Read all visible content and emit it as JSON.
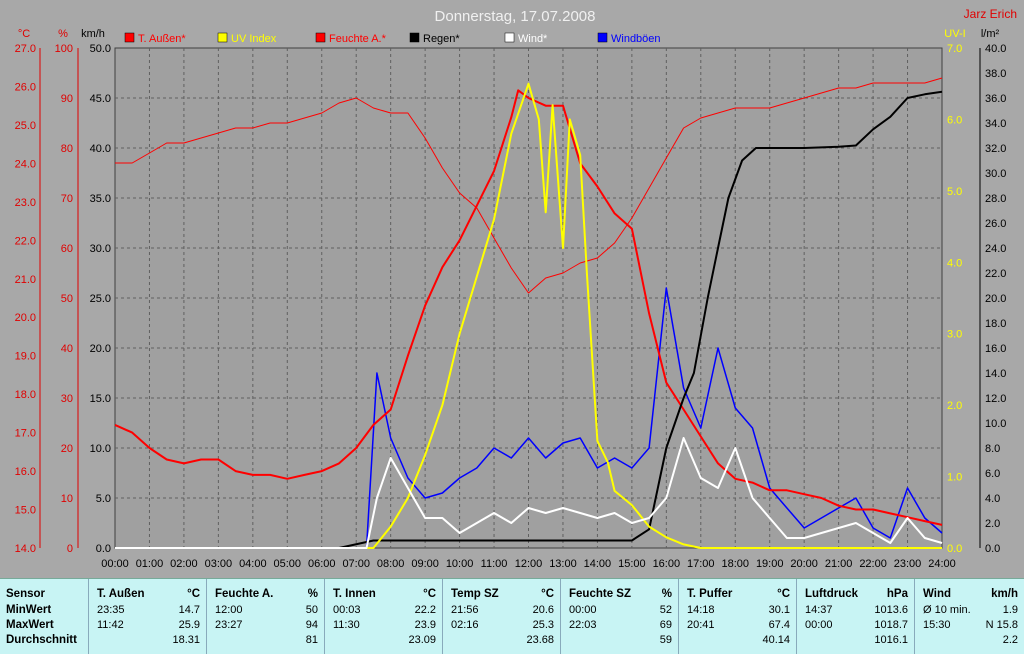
{
  "chart_data": {
    "type": "line",
    "title": "Donnerstag, 17.07.2008",
    "author": "Jarz Erich",
    "x_ticks": [
      "00:00",
      "01:00",
      "02:00",
      "03:00",
      "04:00",
      "05:00",
      "06:00",
      "07:00",
      "08:00",
      "09:00",
      "10:00",
      "11:00",
      "12:00",
      "13:00",
      "14:00",
      "15:00",
      "16:00",
      "17:00",
      "18:00",
      "19:00",
      "20:00",
      "21:00",
      "22:00",
      "23:00",
      "24:00"
    ],
    "axes": {
      "celsius": {
        "unit": "°C",
        "min": 14.0,
        "max": 27.0,
        "ticks": [
          "27.0",
          "26.0",
          "25.0",
          "24.0",
          "23.0",
          "22.0",
          "21.0",
          "20.0",
          "19.0",
          "18.0",
          "17.0",
          "16.0",
          "15.0",
          "14.0"
        ]
      },
      "percent": {
        "unit": "%",
        "min": 0,
        "max": 100,
        "ticks": [
          "100",
          "90",
          "80",
          "70",
          "60",
          "50",
          "40",
          "30",
          "20",
          "10",
          "0"
        ]
      },
      "kmh": {
        "unit": "km/h",
        "min": 0,
        "max": 50,
        "ticks": [
          "50.0",
          "45.0",
          "40.0",
          "35.0",
          "30.0",
          "25.0",
          "20.0",
          "15.0",
          "10.0",
          "5.0",
          "0.0"
        ]
      },
      "uvi": {
        "unit": "UV-I",
        "min": 0,
        "max": 7,
        "ticks": [
          "7.0",
          "6.0",
          "5.0",
          "4.0",
          "3.0",
          "2.0",
          "1.0",
          "0.0"
        ]
      },
      "rain": {
        "unit": "l/m²",
        "min": 0,
        "max": 40,
        "ticks": [
          "40.0",
          "38.0",
          "36.0",
          "34.0",
          "32.0",
          "30.0",
          "28.0",
          "26.0",
          "24.0",
          "22.0",
          "20.0",
          "18.0",
          "16.0",
          "14.0",
          "12.0",
          "10.0",
          "8.0",
          "6.0",
          "4.0",
          "2.0",
          "0.0"
        ]
      }
    },
    "legend": [
      {
        "name": "T. Außen*",
        "color": "#ff0000"
      },
      {
        "name": "UV Index",
        "color": "#ffff00"
      },
      {
        "name": "Feuchte A.*",
        "color": "#ff0000"
      },
      {
        "name": "Regen*",
        "color": "#000000"
      },
      {
        "name": "Wind*",
        "color": "#ffffff"
      },
      {
        "name": "Windböen",
        "color": "#0000ff"
      }
    ],
    "series": [
      {
        "name": "T. Außen*",
        "axis": "celsius",
        "color": "#ff0000",
        "width": 2,
        "x": [
          0,
          0.5,
          1,
          1.5,
          2,
          2.5,
          3,
          3.5,
          4,
          4.5,
          5,
          5.5,
          6,
          6.5,
          7,
          7.5,
          8,
          8.5,
          9,
          9.5,
          10,
          10.5,
          11,
          11.5,
          11.7,
          12,
          12.5,
          13,
          13.5,
          14,
          14.5,
          15,
          15.5,
          16,
          16.5,
          17,
          17.5,
          18,
          18.5,
          19,
          19.5,
          20,
          20.5,
          21,
          21.5,
          22,
          22.5,
          23,
          23.5,
          24
        ],
        "y": [
          17.2,
          17.0,
          16.6,
          16.3,
          16.2,
          16.3,
          16.3,
          16.0,
          15.9,
          15.9,
          15.8,
          15.9,
          16.0,
          16.2,
          16.6,
          17.2,
          17.6,
          19.0,
          20.3,
          21.3,
          22.0,
          22.9,
          23.8,
          25.2,
          25.9,
          25.7,
          25.5,
          25.5,
          24.0,
          23.4,
          22.7,
          22.3,
          20.1,
          18.3,
          17.6,
          16.9,
          16.2,
          15.8,
          15.7,
          15.5,
          15.5,
          15.4,
          15.3,
          15.1,
          15.0,
          15.0,
          14.9,
          14.8,
          14.7,
          14.6
        ]
      },
      {
        "name": "Feuchte A.*",
        "axis": "percent",
        "color": "#ff0000",
        "width": 1,
        "x": [
          0,
          0.5,
          1,
          1.5,
          2,
          2.5,
          3,
          3.5,
          4,
          4.5,
          5,
          5.5,
          6,
          6.5,
          7,
          7.5,
          8,
          8.5,
          9,
          9.5,
          10,
          10.5,
          11,
          11.5,
          12,
          12.5,
          13,
          13.5,
          14,
          14.5,
          15,
          15.5,
          16,
          16.5,
          17,
          17.5,
          18,
          18.5,
          19,
          19.5,
          20,
          20.5,
          21,
          21.5,
          22,
          22.5,
          23,
          23.5,
          24
        ],
        "y": [
          77,
          77,
          79,
          81,
          81,
          82,
          83,
          84,
          84,
          85,
          85,
          86,
          87,
          89,
          90,
          88,
          87,
          87,
          82,
          76,
          71,
          68,
          62,
          56,
          51,
          54,
          55,
          57,
          58,
          61,
          66,
          72,
          78,
          84,
          86,
          87,
          88,
          88,
          88,
          89,
          90,
          91,
          92,
          92,
          93,
          93,
          93,
          93,
          94
        ]
      },
      {
        "name": "Regen*",
        "axis": "rain",
        "color": "#000000",
        "width": 2,
        "x": [
          0,
          6.5,
          7.5,
          12,
          15,
          15.5,
          16,
          16.5,
          16.8,
          17.2,
          17.5,
          17.8,
          18.2,
          18.6,
          19,
          20,
          21,
          21.5,
          22,
          22.5,
          23,
          23.5,
          24
        ],
        "y": [
          0,
          0,
          0.6,
          0.6,
          0.6,
          1.5,
          8.0,
          12.0,
          14.0,
          20.0,
          24.0,
          28.0,
          31.0,
          32.0,
          32.0,
          32.0,
          32.1,
          32.2,
          33.5,
          34.5,
          36.0,
          36.3,
          36.5
        ]
      },
      {
        "name": "UV Index",
        "axis": "uvi",
        "color": "#ffff00",
        "width": 2,
        "x": [
          0,
          7.5,
          8,
          8.5,
          9,
          9.5,
          10,
          10.5,
          11,
          11.5,
          12,
          12.3,
          12.5,
          12.7,
          13,
          13.2,
          13.5,
          13.7,
          14,
          14.3,
          14.5,
          15,
          15.5,
          16,
          16.5,
          17,
          24
        ],
        "y": [
          0,
          0,
          0.3,
          0.7,
          1.3,
          2.0,
          3.0,
          3.8,
          4.6,
          5.8,
          6.5,
          6.0,
          4.7,
          6.2,
          4.2,
          6.0,
          5.5,
          3.8,
          1.5,
          1.2,
          0.8,
          0.6,
          0.3,
          0.15,
          0.05,
          0,
          0
        ]
      },
      {
        "name": "Wind*",
        "axis": "kmh",
        "color": "#ffffff",
        "width": 2,
        "x": [
          0,
          7.3,
          7.6,
          8,
          8.5,
          9,
          9.5,
          10,
          10.5,
          11,
          11.5,
          12,
          12.5,
          13,
          13.5,
          14,
          14.5,
          15,
          15.5,
          16,
          16.5,
          17,
          17.5,
          18,
          18.5,
          19,
          19.5,
          20,
          20.5,
          21,
          21.5,
          22,
          22.5,
          23,
          23.5,
          24
        ],
        "y": [
          0,
          0,
          5,
          9,
          6,
          3,
          3,
          1.5,
          2.5,
          3.5,
          2.5,
          4,
          3.5,
          4,
          3.5,
          3,
          3.5,
          2.5,
          3,
          5,
          11,
          7,
          6,
          10,
          5,
          3,
          1,
          1,
          1.5,
          2,
          2.5,
          1.5,
          0.5,
          3,
          1,
          0.5
        ]
      },
      {
        "name": "Windböen",
        "axis": "kmh",
        "color": "#0000ff",
        "width": 1.5,
        "x": [
          0,
          7.3,
          7.6,
          8,
          8.5,
          9,
          9.5,
          10,
          10.5,
          11,
          11.5,
          12,
          12.5,
          13,
          13.5,
          14,
          14.5,
          15,
          15.5,
          16,
          16.5,
          17,
          17.5,
          18,
          18.5,
          19,
          19.5,
          20,
          20.5,
          21,
          21.5,
          22,
          22.5,
          23,
          23.5,
          24
        ],
        "y": [
          0,
          0,
          17.5,
          11,
          7,
          5,
          5.5,
          7,
          8,
          10,
          9,
          11,
          9,
          10.5,
          11,
          8,
          9,
          8,
          10,
          26,
          16,
          12,
          20,
          14,
          12,
          6,
          4,
          2,
          3,
          4,
          5,
          2,
          1,
          6,
          3,
          1.5
        ]
      }
    ]
  },
  "table": [
    {
      "header": [
        "Sensor",
        ""
      ],
      "rows": [
        [
          "MinWert",
          ""
        ],
        [
          "MaxWert",
          ""
        ],
        [
          "Durchschnitt",
          ""
        ]
      ]
    },
    {
      "header": [
        "T. Außen",
        "°C"
      ],
      "rows": [
        [
          "23:35",
          "14.7"
        ],
        [
          "11:42",
          "25.9"
        ],
        [
          "",
          "18.31"
        ]
      ]
    },
    {
      "header": [
        "Feuchte A.",
        "%"
      ],
      "rows": [
        [
          "12:00",
          "50"
        ],
        [
          "23:27",
          "94"
        ],
        [
          "",
          "81"
        ]
      ]
    },
    {
      "header": [
        "T. Innen",
        "°C"
      ],
      "rows": [
        [
          "00:03",
          "22.2"
        ],
        [
          "11:30",
          "23.9"
        ],
        [
          "",
          "23.09"
        ]
      ]
    },
    {
      "header": [
        "Temp SZ",
        "°C"
      ],
      "rows": [
        [
          "21:56",
          "20.6"
        ],
        [
          "02:16",
          "25.3"
        ],
        [
          "",
          "23.68"
        ]
      ]
    },
    {
      "header": [
        "Feuchte SZ",
        "%"
      ],
      "rows": [
        [
          "00:00",
          "52"
        ],
        [
          "22:03",
          "69"
        ],
        [
          "",
          "59"
        ]
      ]
    },
    {
      "header": [
        "T. Puffer",
        "°C"
      ],
      "rows": [
        [
          "14:18",
          "30.1"
        ],
        [
          "20:41",
          "67.4"
        ],
        [
          "",
          "40.14"
        ]
      ]
    },
    {
      "header": [
        "Luftdruck",
        "hPa"
      ],
      "rows": [
        [
          "14:37",
          "1013.6"
        ],
        [
          "00:00",
          "1018.7"
        ],
        [
          "",
          "1016.1"
        ]
      ]
    },
    {
      "header": [
        "Wind",
        "km/h"
      ],
      "rows": [
        [
          "Ø 10 min.",
          "1.9"
        ],
        [
          "15:30",
          "N 15.8"
        ],
        [
          "",
          "2.2"
        ]
      ]
    }
  ]
}
